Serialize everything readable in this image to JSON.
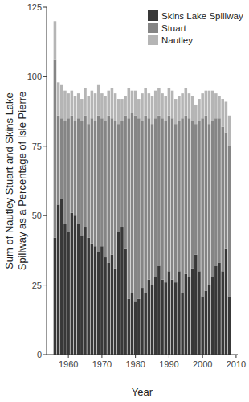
{
  "chart_data": {
    "type": "bar",
    "stacked": true,
    "x_label": "Year",
    "y_label": "Sum of Nautley Stuart and Skins Lake Spillway as a Percentage of Isle Pierre",
    "legend": "top-right",
    "grid": false,
    "x": [
      1956,
      1957,
      1958,
      1959,
      1960,
      1961,
      1962,
      1963,
      1964,
      1965,
      1966,
      1967,
      1968,
      1969,
      1970,
      1971,
      1972,
      1973,
      1974,
      1975,
      1976,
      1977,
      1978,
      1979,
      1980,
      1981,
      1982,
      1983,
      1984,
      1985,
      1986,
      1987,
      1988,
      1989,
      1990,
      1991,
      1992,
      1993,
      1994,
      1995,
      1996,
      1997,
      1998,
      1999,
      2000,
      2001,
      2002,
      2003,
      2004,
      2005,
      2006,
      2007,
      2008
    ],
    "xlim": [
      1953.5,
      2010.5
    ],
    "xticks": [
      1960,
      1970,
      1980,
      1990,
      2000,
      2010
    ],
    "ylim": [
      0,
      125
    ],
    "yticks": [
      0,
      25,
      50,
      75,
      100,
      125
    ],
    "series": [
      {
        "name": "Skins Lake Spillway",
        "color": "#383838",
        "values": [
          42,
          54,
          56,
          47,
          44,
          51,
          50,
          47,
          43,
          46,
          42,
          40,
          39,
          37,
          39,
          35,
          33,
          36,
          31,
          44,
          46,
          38,
          20,
          22,
          19,
          20,
          24,
          22,
          27,
          25,
          28,
          32,
          27,
          26,
          30,
          27,
          26,
          30,
          22,
          29,
          28,
          31,
          36,
          30,
          21,
          23,
          25,
          28,
          32,
          33,
          30,
          38,
          21
        ]
      },
      {
        "name": "Stuart",
        "color": "#858585",
        "values": [
          64,
          32,
          29,
          37,
          41,
          35,
          34,
          38,
          41,
          40,
          41,
          45,
          45,
          49,
          46,
          49,
          53,
          49,
          53,
          39,
          38,
          48,
          65,
          65,
          67,
          65,
          60,
          64,
          58,
          58,
          57,
          54,
          58,
          58,
          56,
          58,
          57,
          54,
          63,
          57,
          57,
          53,
          47,
          54,
          64,
          63,
          58,
          56,
          53,
          52,
          52,
          42,
          54
        ]
      },
      {
        "name": "Nautley",
        "color": "#b5b5b5",
        "values": [
          14,
          12,
          12,
          11,
          9,
          9,
          9,
          9,
          8,
          10,
          10,
          10,
          10,
          11,
          9,
          9,
          9,
          11,
          10,
          9,
          8,
          7,
          11,
          8,
          9,
          7,
          10,
          10,
          9,
          10,
          10,
          10,
          9,
          9,
          10,
          10,
          9,
          9,
          9,
          10,
          9,
          9,
          7,
          8,
          9,
          9,
          12,
          11,
          9,
          8,
          10,
          11,
          11
        ]
      }
    ]
  }
}
